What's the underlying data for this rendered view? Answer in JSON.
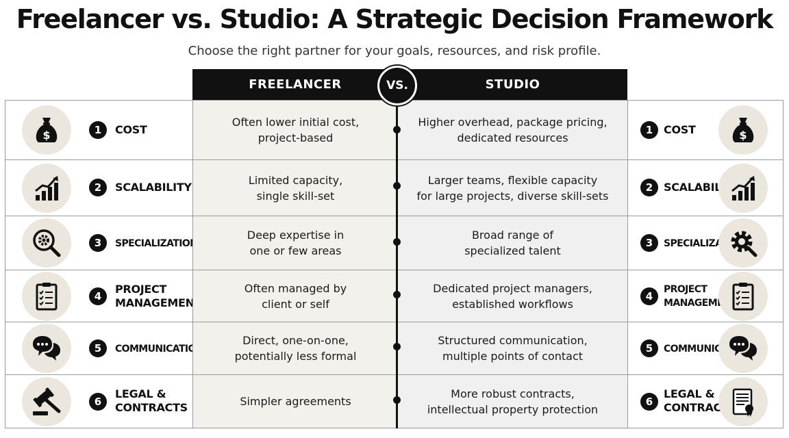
{
  "title": "Freelancer vs. Studio: A Strategic Decision Framework",
  "subtitle": "Choose the right partner for your goals, resources, and risk profile.",
  "headers": {
    "freelancer": "FREELANCER",
    "vs": "VS.",
    "studio": "STUDIO"
  },
  "colors": {
    "ink": "#111111",
    "icon_bg": "#ebe7de",
    "freelancer_bg": "#f3f1ec",
    "studio_bg": "#f0f0f0"
  },
  "rows": [
    {
      "num": "1",
      "label": "COST",
      "freelancer": "Often lower initial cost,\nproject-based",
      "studio": "Higher overhead, package pricing,\ndedicated resources",
      "left_icon": "money-bag-icon",
      "right_icon": "money-bag-icon"
    },
    {
      "num": "2",
      "label": "SCALABILITY",
      "freelancer": "Limited capacity,\nsingle skill-set",
      "studio": "Larger teams, flexible capacity\nfor large projects, diverse skill-sets",
      "left_icon": "growth-chart-icon",
      "right_icon": "growth-chart-icon"
    },
    {
      "num": "3",
      "label": "SPECIALIZATION",
      "freelancer": "Deep expertise in\none or few areas",
      "studio": "Broad range of\nspecialized talent",
      "left_icon": "magnifier-gear-icon",
      "right_icon": "gear-magnifier-icon"
    },
    {
      "num": "4",
      "label": "PROJECT\nMANAGEMENT",
      "freelancer": "Often managed by\nclient or self",
      "studio": "Dedicated project managers,\nestablished workflows",
      "left_icon": "clipboard-checklist-icon",
      "right_icon": "clipboard-checklist-icon"
    },
    {
      "num": "5",
      "label": "COMMUNICATION",
      "freelancer": "Direct, one-on-one,\npotentially less formal",
      "studio": "Structured communication,\nmultiple points of contact",
      "left_icon": "chat-bubbles-icon",
      "right_icon": "chat-bubbles-icon"
    },
    {
      "num": "6",
      "label": "LEGAL &\nCONTRACTS",
      "freelancer": "Simpler agreements",
      "studio": "More robust contracts,\nintellectual property protection",
      "left_icon": "gavel-icon",
      "right_icon": "certificate-scroll-icon"
    }
  ]
}
